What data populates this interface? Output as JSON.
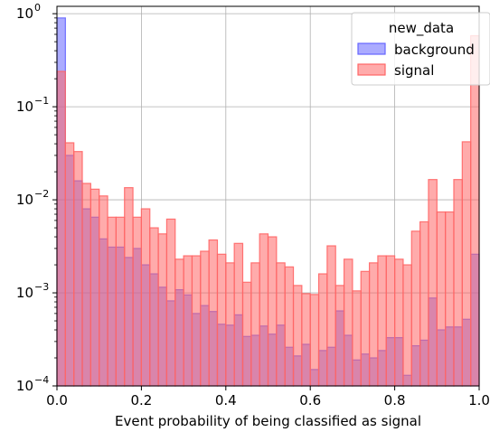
{
  "chart_data": {
    "type": "bar",
    "xlabel": "Event probability of being classified as signal",
    "ylabel": "",
    "xlim": [
      0.0,
      1.0
    ],
    "ylim": [
      0.0001,
      1.2
    ],
    "yscale": "log",
    "grid": true,
    "bins": 50,
    "x_ticks": [
      0.0,
      0.2,
      0.4,
      0.6,
      0.8,
      1.0
    ],
    "x_tick_labels": [
      "0.0",
      "0.2",
      "0.4",
      "0.6",
      "0.8",
      "1.0"
    ],
    "y_ticks": [
      0.0001,
      0.001,
      0.01,
      0.1,
      1
    ],
    "y_tick_bases": [
      "10",
      "10",
      "10",
      "10",
      "10"
    ],
    "y_tick_exponents": [
      "−4",
      "−3",
      "−2",
      "−1",
      "0"
    ],
    "legend": {
      "title": "new_data",
      "position": "top-right"
    },
    "series": [
      {
        "name": "background",
        "color": "#6666ff",
        "values": [
          0.9,
          0.03,
          0.016,
          0.008,
          0.0065,
          0.0038,
          0.0031,
          0.0031,
          0.0024,
          0.003,
          0.002,
          0.0016,
          0.00115,
          0.00082,
          0.00108,
          0.00095,
          0.0006,
          0.00073,
          0.00063,
          0.00046,
          0.00045,
          0.00058,
          0.00034,
          0.00035,
          0.00044,
          0.00036,
          0.00045,
          0.00026,
          0.00021,
          0.00028,
          0.00015,
          0.00024,
          0.00026,
          0.00064,
          0.00035,
          0.00019,
          0.00022,
          0.0002,
          0.00024,
          0.00033,
          0.00033,
          0.00013,
          0.00027,
          0.00031,
          0.00088,
          0.0004,
          0.00043,
          0.00043,
          0.00052,
          0.0026
        ]
      },
      {
        "name": "signal",
        "color": "#ff6666",
        "values": [
          0.24,
          0.041,
          0.033,
          0.015,
          0.013,
          0.011,
          0.0065,
          0.0065,
          0.0135,
          0.0065,
          0.008,
          0.005,
          0.0043,
          0.0062,
          0.0023,
          0.0025,
          0.0025,
          0.0028,
          0.0037,
          0.0026,
          0.0021,
          0.0034,
          0.0013,
          0.0021,
          0.0043,
          0.004,
          0.0021,
          0.0019,
          0.0012,
          0.00098,
          0.00096,
          0.0016,
          0.0032,
          0.0012,
          0.0023,
          0.00105,
          0.0017,
          0.0021,
          0.0025,
          0.0025,
          0.0023,
          0.002,
          0.0046,
          0.0058,
          0.0165,
          0.0074,
          0.0074,
          0.0165,
          0.042,
          0.58
        ]
      }
    ]
  }
}
